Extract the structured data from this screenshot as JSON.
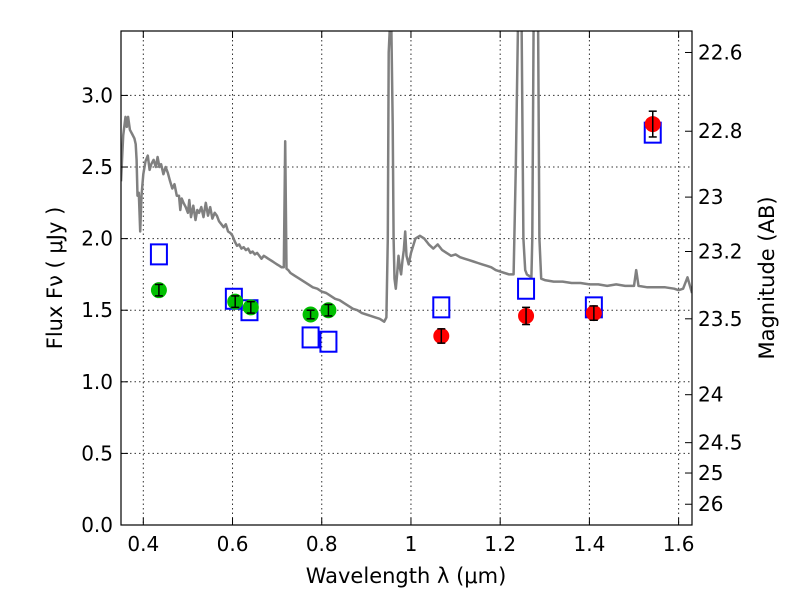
{
  "chart_data": {
    "type": "scatter",
    "xlabel": "Wavelength  λ (μm)",
    "ylabel": "Flux  Fν  ( μJy )",
    "y2label": "Magnitude (AB)",
    "xlim": [
      0.35,
      1.63
    ],
    "ylim": [
      0.0,
      3.45
    ],
    "grid": true,
    "x_ticks": [
      {
        "value": 0.4,
        "label": "0.4"
      },
      {
        "value": 0.6,
        "label": "0.6"
      },
      {
        "value": 0.8,
        "label": "0.8"
      },
      {
        "value": 1.0,
        "label": "1"
      },
      {
        "value": 1.2,
        "label": "1.2"
      },
      {
        "value": 1.4,
        "label": "1.4"
      },
      {
        "value": 1.6,
        "label": "1.6"
      }
    ],
    "y_ticks": [
      {
        "value": 0.0,
        "label": "0.0"
      },
      {
        "value": 0.5,
        "label": "0.5"
      },
      {
        "value": 1.0,
        "label": "1.0"
      },
      {
        "value": 1.5,
        "label": "1.5"
      },
      {
        "value": 2.0,
        "label": "2.0"
      },
      {
        "value": 2.5,
        "label": "2.5"
      },
      {
        "value": 3.0,
        "label": "3.0"
      }
    ],
    "y2_ticks": [
      {
        "flux": 3.3,
        "label": "22.6"
      },
      {
        "flux": 2.75,
        "label": "22.8"
      },
      {
        "flux": 2.29,
        "label": "23"
      },
      {
        "flux": 1.91,
        "label": "23.2"
      },
      {
        "flux": 1.44,
        "label": "23.5"
      },
      {
        "flux": 0.91,
        "label": "24"
      },
      {
        "flux": 0.575,
        "label": "24.5"
      },
      {
        "flux": 0.363,
        "label": "25"
      },
      {
        "flux": 0.145,
        "label": "26"
      }
    ],
    "series": [
      {
        "kind": "spectrum",
        "color": "#808080",
        "points": [
          [
            0.35,
            2.4
          ],
          [
            0.355,
            2.72
          ],
          [
            0.36,
            2.85
          ],
          [
            0.363,
            2.78
          ],
          [
            0.366,
            2.85
          ],
          [
            0.37,
            2.76
          ],
          [
            0.375,
            2.73
          ],
          [
            0.38,
            2.7
          ],
          [
            0.383,
            2.66
          ],
          [
            0.385,
            2.55
          ],
          [
            0.387,
            2.3
          ],
          [
            0.39,
            2.32
          ],
          [
            0.393,
            2.05
          ],
          [
            0.396,
            2.3
          ],
          [
            0.4,
            2.45
          ],
          [
            0.405,
            2.54
          ],
          [
            0.41,
            2.58
          ],
          [
            0.414,
            2.48
          ],
          [
            0.418,
            2.52
          ],
          [
            0.423,
            2.55
          ],
          [
            0.428,
            2.5
          ],
          [
            0.432,
            2.57
          ],
          [
            0.436,
            2.5
          ],
          [
            0.44,
            2.52
          ],
          [
            0.445,
            2.45
          ],
          [
            0.45,
            2.5
          ],
          [
            0.455,
            2.46
          ],
          [
            0.46,
            2.4
          ],
          [
            0.465,
            2.35
          ],
          [
            0.47,
            2.38
          ],
          [
            0.475,
            2.3
          ],
          [
            0.48,
            2.3
          ],
          [
            0.483,
            2.2
          ],
          [
            0.486,
            2.28
          ],
          [
            0.49,
            2.25
          ],
          [
            0.495,
            2.22
          ],
          [
            0.5,
            2.18
          ],
          [
            0.503,
            2.27
          ],
          [
            0.507,
            2.15
          ],
          [
            0.512,
            2.23
          ],
          [
            0.517,
            2.13
          ],
          [
            0.521,
            2.2
          ],
          [
            0.525,
            2.18
          ],
          [
            0.53,
            2.22
          ],
          [
            0.535,
            2.15
          ],
          [
            0.54,
            2.25
          ],
          [
            0.545,
            2.16
          ],
          [
            0.55,
            2.22
          ],
          [
            0.555,
            2.14
          ],
          [
            0.56,
            2.18
          ],
          [
            0.565,
            2.16
          ],
          [
            0.57,
            2.12
          ],
          [
            0.575,
            2.1
          ],
          [
            0.58,
            2.08
          ],
          [
            0.585,
            2.1
          ],
          [
            0.59,
            2.05
          ],
          [
            0.595,
            2.04
          ],
          [
            0.6,
            2.02
          ],
          [
            0.605,
            1.98
          ],
          [
            0.61,
            1.95
          ],
          [
            0.615,
            1.96
          ],
          [
            0.62,
            1.93
          ],
          [
            0.625,
            1.94
          ],
          [
            0.63,
            1.92
          ],
          [
            0.635,
            1.93
          ],
          [
            0.64,
            1.9
          ],
          [
            0.645,
            1.91
          ],
          [
            0.65,
            1.89
          ],
          [
            0.655,
            1.9
          ],
          [
            0.66,
            1.88
          ],
          [
            0.665,
            1.86
          ],
          [
            0.67,
            1.88
          ],
          [
            0.675,
            1.87
          ],
          [
            0.68,
            1.86
          ],
          [
            0.685,
            1.85
          ],
          [
            0.69,
            1.84
          ],
          [
            0.695,
            1.83
          ],
          [
            0.7,
            1.82
          ],
          [
            0.705,
            1.81
          ],
          [
            0.71,
            1.8
          ],
          [
            0.715,
            1.8
          ],
          [
            0.718,
            2.68
          ],
          [
            0.721,
            1.79
          ],
          [
            0.725,
            1.78
          ],
          [
            0.73,
            1.76
          ],
          [
            0.735,
            1.75
          ],
          [
            0.74,
            1.74
          ],
          [
            0.745,
            1.73
          ],
          [
            0.75,
            1.72
          ],
          [
            0.76,
            1.7
          ],
          [
            0.77,
            1.68
          ],
          [
            0.78,
            1.66
          ],
          [
            0.79,
            1.65
          ],
          [
            0.8,
            1.63
          ],
          [
            0.81,
            1.62
          ],
          [
            0.82,
            1.6
          ],
          [
            0.83,
            1.58
          ],
          [
            0.84,
            1.57
          ],
          [
            0.85,
            1.55
          ],
          [
            0.86,
            1.53
          ],
          [
            0.87,
            1.51
          ],
          [
            0.88,
            1.5
          ],
          [
            0.89,
            1.48
          ],
          [
            0.9,
            1.47
          ],
          [
            0.91,
            1.46
          ],
          [
            0.92,
            1.45
          ],
          [
            0.93,
            1.44
          ],
          [
            0.94,
            1.42
          ],
          [
            0.945,
            1.45
          ],
          [
            0.948,
            2.0
          ],
          [
            0.95,
            3.3
          ],
          [
            0.953,
            3.5
          ],
          [
            0.956,
            3.5
          ],
          [
            0.959,
            2.8
          ],
          [
            0.961,
            2.0
          ],
          [
            0.963,
            1.72
          ],
          [
            0.966,
            1.65
          ],
          [
            0.969,
            1.75
          ],
          [
            0.972,
            1.88
          ],
          [
            0.975,
            1.8
          ],
          [
            0.978,
            1.75
          ],
          [
            0.981,
            1.85
          ],
          [
            0.984,
            1.92
          ],
          [
            0.987,
            2.05
          ],
          [
            0.99,
            1.88
          ],
          [
            0.995,
            1.82
          ],
          [
            1.0,
            1.9
          ],
          [
            1.01,
            2.0
          ],
          [
            1.02,
            2.02
          ],
          [
            1.03,
            2.0
          ],
          [
            1.04,
            1.96
          ],
          [
            1.05,
            1.93
          ],
          [
            1.06,
            1.96
          ],
          [
            1.07,
            1.92
          ],
          [
            1.08,
            1.9
          ],
          [
            1.09,
            1.88
          ],
          [
            1.1,
            1.89
          ],
          [
            1.11,
            1.87
          ],
          [
            1.12,
            1.86
          ],
          [
            1.13,
            1.85
          ],
          [
            1.14,
            1.84
          ],
          [
            1.15,
            1.83
          ],
          [
            1.16,
            1.82
          ],
          [
            1.17,
            1.81
          ],
          [
            1.18,
            1.8
          ],
          [
            1.19,
            1.78
          ],
          [
            1.2,
            1.77
          ],
          [
            1.21,
            1.76
          ],
          [
            1.22,
            1.75
          ],
          [
            1.23,
            1.75
          ],
          [
            1.235,
            2.5
          ],
          [
            1.24,
            3.5
          ],
          [
            1.248,
            3.5
          ],
          [
            1.252,
            2.0
          ],
          [
            1.256,
            1.78
          ],
          [
            1.26,
            1.75
          ],
          [
            1.265,
            1.74
          ],
          [
            1.27,
            1.73
          ],
          [
            1.272,
            2.0
          ],
          [
            1.275,
            3.5
          ],
          [
            1.285,
            3.5
          ],
          [
            1.288,
            2.0
          ],
          [
            1.292,
            1.72
          ],
          [
            1.3,
            1.71
          ],
          [
            1.32,
            1.7
          ],
          [
            1.34,
            1.7
          ],
          [
            1.36,
            1.69
          ],
          [
            1.38,
            1.69
          ],
          [
            1.4,
            1.68
          ],
          [
            1.42,
            1.68
          ],
          [
            1.44,
            1.67
          ],
          [
            1.46,
            1.68
          ],
          [
            1.48,
            1.67
          ],
          [
            1.5,
            1.67
          ],
          [
            1.505,
            1.78
          ],
          [
            1.51,
            1.67
          ],
          [
            1.53,
            1.66
          ],
          [
            1.55,
            1.66
          ],
          [
            1.57,
            1.66
          ],
          [
            1.59,
            1.65
          ],
          [
            1.6,
            1.64
          ],
          [
            1.61,
            1.65
          ],
          [
            1.62,
            1.73
          ],
          [
            1.63,
            1.62
          ]
        ]
      },
      {
        "kind": "model-photometry",
        "marker": "open-square",
        "color": "#0000ff",
        "points": [
          {
            "x": 0.435,
            "y": 1.89
          },
          {
            "x": 0.603,
            "y": 1.58
          },
          {
            "x": 0.638,
            "y": 1.5
          },
          {
            "x": 0.775,
            "y": 1.31
          },
          {
            "x": 0.815,
            "y": 1.28
          },
          {
            "x": 1.068,
            "y": 1.52
          },
          {
            "x": 1.258,
            "y": 1.65
          },
          {
            "x": 1.41,
            "y": 1.52
          },
          {
            "x": 1.542,
            "y": 2.74
          }
        ]
      },
      {
        "kind": "optical-observed",
        "marker": "filled-circle",
        "color": "#00c000",
        "points": [
          {
            "x": 0.435,
            "y": 1.64,
            "err": 0.04
          },
          {
            "x": 0.606,
            "y": 1.56,
            "err": 0.04
          },
          {
            "x": 0.641,
            "y": 1.52,
            "err": 0.04
          },
          {
            "x": 0.775,
            "y": 1.47,
            "err": 0.03
          },
          {
            "x": 0.815,
            "y": 1.5,
            "err": 0.04
          }
        ]
      },
      {
        "kind": "ir-observed",
        "marker": "filled-circle",
        "color": "#ff0000",
        "points": [
          {
            "x": 1.068,
            "y": 1.32,
            "err": 0.05
          },
          {
            "x": 1.258,
            "y": 1.46,
            "err": 0.06
          },
          {
            "x": 1.41,
            "y": 1.48,
            "err": 0.05
          },
          {
            "x": 1.542,
            "y": 2.8,
            "err": 0.09
          }
        ]
      }
    ]
  }
}
